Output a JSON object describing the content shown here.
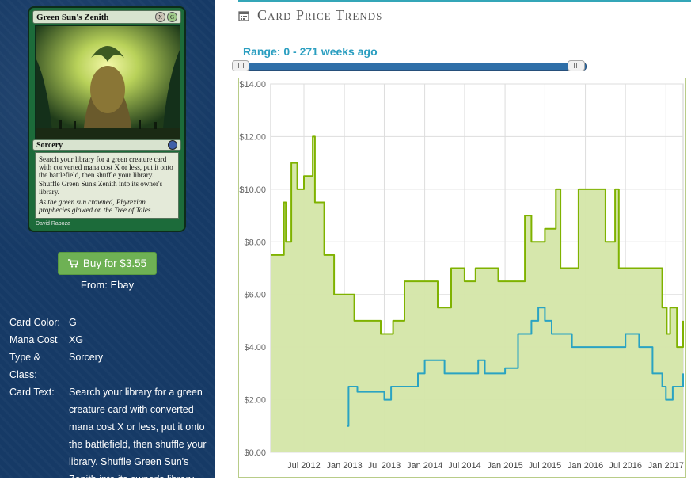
{
  "card": {
    "name": "Green Sun's Zenith",
    "mana_symbols": [
      "X",
      "G"
    ],
    "type_line": "Sorcery",
    "rules_text": "Search your library for a green creature card with converted mana cost X or less, put it onto the battlefield, then shuffle your library. Shuffle Green Sun's Zenith into its owner's library.",
    "flavor_text": "As the green sun crowned, Phyrexian prophecies glowed on the Tree of Tales.",
    "artist": "David Rapoza"
  },
  "buy": {
    "label": "Buy for $3.55",
    "from": "From: Ebay"
  },
  "info": [
    {
      "label": "Card Color:",
      "value": "G"
    },
    {
      "label": "Mana Cost",
      "value": "XG"
    },
    {
      "label": "Type & Class:",
      "value": "Sorcery"
    },
    {
      "label": "Card Text:",
      "value": "Search your library for a green creature card with converted mana cost X or less, put it onto the battlefield, then shuffle your library. Shuffle Green Sun's Zenith into its owner's library."
    }
  ],
  "section": {
    "title": "Card Price Trends",
    "range_label": "Range: 0 - 271 weeks ago"
  },
  "slider": {
    "min_weeks": 0,
    "max_weeks": 271
  },
  "colors": {
    "green_line": "#7fb200",
    "green_fill": "#d4e6a8",
    "blue_line": "#2aa3c2",
    "buy_button": "#6eb154",
    "sidebar": "#163a66"
  },
  "chart_data": {
    "type": "area",
    "title": "",
    "xlabel": "",
    "ylabel": "",
    "x_ticks": [
      "Jul 2012",
      "Jan 2013",
      "Jul 2013",
      "Jan 2014",
      "Jul 2014",
      "Jan 2015",
      "Jul 2015",
      "Jan 2016",
      "Jul 2016",
      "Jan 2017"
    ],
    "y_ticks": [
      "$0.00",
      "$2.00",
      "$4.00",
      "$6.00",
      "$8.00",
      "$10.00",
      "$12.00",
      "$14.00"
    ],
    "xlim": [
      "2012-02-01",
      "2017-03-20"
    ],
    "ylim": [
      0,
      14
    ],
    "grid": true,
    "series": [
      {
        "points": [
          [
            "2012-02-01",
            7.5
          ],
          [
            "2012-04-01",
            9.5
          ],
          [
            "2012-04-10",
            8.0
          ],
          [
            "2012-05-05",
            11.0
          ],
          [
            "2012-06-01",
            10.0
          ],
          [
            "2012-07-01",
            10.5
          ],
          [
            "2012-08-10",
            12.0
          ],
          [
            "2012-08-20",
            9.5
          ],
          [
            "2012-10-01",
            7.5
          ],
          [
            "2012-11-15",
            6.0
          ],
          [
            "2013-01-01",
            6.0
          ],
          [
            "2013-02-15",
            5.0
          ],
          [
            "2013-05-01",
            5.0
          ],
          [
            "2013-06-15",
            4.5
          ],
          [
            "2013-08-10",
            5.0
          ],
          [
            "2013-10-01",
            6.5
          ],
          [
            "2014-01-01",
            6.5
          ],
          [
            "2014-03-01",
            5.5
          ],
          [
            "2014-05-01",
            7.0
          ],
          [
            "2014-07-01",
            6.5
          ],
          [
            "2014-08-20",
            7.0
          ],
          [
            "2014-10-01",
            7.0
          ],
          [
            "2014-12-01",
            6.5
          ],
          [
            "2015-01-10",
            6.5
          ],
          [
            "2015-04-01",
            9.0
          ],
          [
            "2015-05-01",
            8.0
          ],
          [
            "2015-07-01",
            8.5
          ],
          [
            "2015-08-20",
            10.0
          ],
          [
            "2015-09-10",
            7.0
          ],
          [
            "2015-11-01",
            7.0
          ],
          [
            "2015-12-01",
            10.0
          ],
          [
            "2016-03-01",
            10.0
          ],
          [
            "2016-04-01",
            8.0
          ],
          [
            "2016-05-15",
            10.0
          ],
          [
            "2016-06-01",
            7.0
          ],
          [
            "2016-09-01",
            7.0
          ],
          [
            "2016-11-20",
            7.0
          ],
          [
            "2016-12-15",
            5.5
          ],
          [
            "2017-01-05",
            4.5
          ],
          [
            "2017-01-20",
            5.5
          ],
          [
            "2017-02-20",
            4.0
          ],
          [
            "2017-03-20",
            5.0
          ]
        ]
      },
      {
        "points": [
          [
            "2013-01-15",
            1.0
          ],
          [
            "2013-01-20",
            2.5
          ],
          [
            "2013-02-15",
            2.5
          ],
          [
            "2013-03-01",
            2.3
          ],
          [
            "2013-06-01",
            2.3
          ],
          [
            "2013-07-01",
            2.0
          ],
          [
            "2013-08-01",
            2.5
          ],
          [
            "2013-10-01",
            2.5
          ],
          [
            "2013-12-01",
            3.0
          ],
          [
            "2014-01-01",
            3.5
          ],
          [
            "2014-03-01",
            3.5
          ],
          [
            "2014-04-01",
            3.0
          ],
          [
            "2014-07-01",
            3.0
          ],
          [
            "2014-09-01",
            3.5
          ],
          [
            "2014-10-01",
            3.0
          ],
          [
            "2014-12-01",
            3.0
          ],
          [
            "2015-01-01",
            3.2
          ],
          [
            "2015-03-01",
            4.5
          ],
          [
            "2015-05-01",
            5.0
          ],
          [
            "2015-06-01",
            5.5
          ],
          [
            "2015-07-01",
            5.0
          ],
          [
            "2015-08-01",
            4.5
          ],
          [
            "2015-10-01",
            4.5
          ],
          [
            "2015-11-01",
            4.0
          ],
          [
            "2016-01-01",
            4.0
          ],
          [
            "2016-03-01",
            4.0
          ],
          [
            "2016-06-01",
            4.0
          ],
          [
            "2016-07-01",
            4.5
          ],
          [
            "2016-09-01",
            4.0
          ],
          [
            "2016-11-01",
            3.0
          ],
          [
            "2016-12-15",
            2.5
          ],
          [
            "2017-01-01",
            2.0
          ],
          [
            "2017-02-01",
            2.5
          ],
          [
            "2017-03-20",
            3.0
          ]
        ]
      }
    ]
  }
}
